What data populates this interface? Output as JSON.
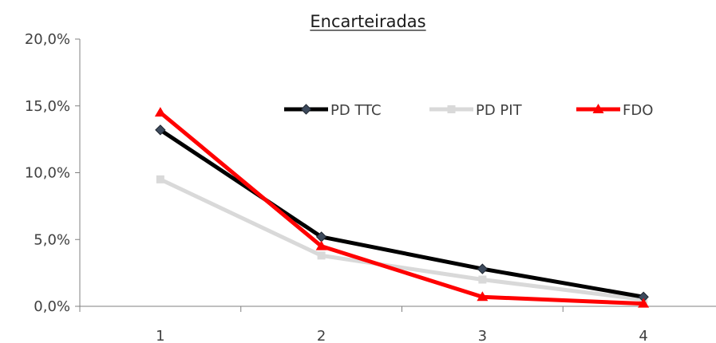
{
  "chart_data": {
    "type": "line",
    "title": "Encarteiradas",
    "xlabel": "",
    "ylabel": "",
    "categories": [
      "1",
      "2",
      "3",
      "4"
    ],
    "ylim": [
      0,
      0.2
    ],
    "yticks": [
      "0,0%",
      "5,0%",
      "10,0%",
      "15,0%",
      "20,0%"
    ],
    "grid": false,
    "legend_position": "top-right",
    "series": [
      {
        "name": "PD TTC",
        "values": [
          0.132,
          0.052,
          0.028,
          0.007
        ],
        "color": "#000000",
        "marker": "diamond",
        "marker_color": "#3d4a5c"
      },
      {
        "name": "PD PIT",
        "values": [
          0.095,
          0.038,
          0.02,
          0.005
        ],
        "color": "#d9d9d9",
        "marker": "square",
        "marker_color": "#d9d9d9"
      },
      {
        "name": "FDO",
        "values": [
          0.145,
          0.045,
          0.007,
          0.002
        ],
        "color": "#ff0000",
        "marker": "triangle",
        "marker_color": "#ff0000"
      }
    ]
  }
}
